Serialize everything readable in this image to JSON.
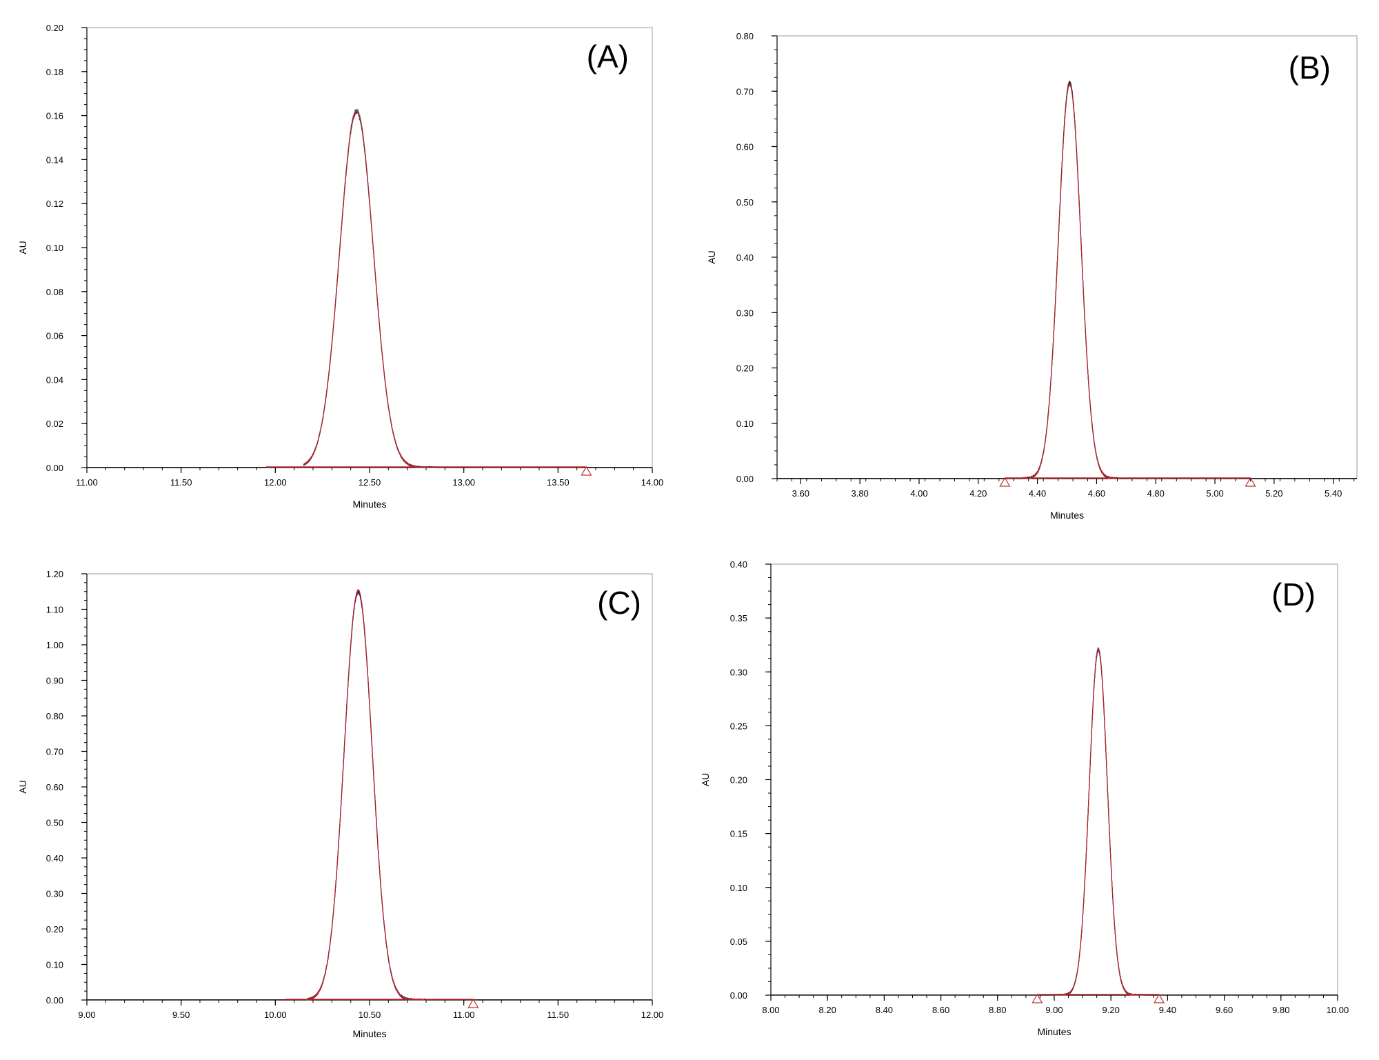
{
  "colors": {
    "axis": "#000000",
    "baseline": "#d02020",
    "marker": "#c03030",
    "traces": [
      "#d02020",
      "#1a1a1a",
      "#2a8a3a",
      "#3a6ad0",
      "#6a3aa0"
    ]
  },
  "chart_data": [
    {
      "type": "line",
      "panel_label": "(A)",
      "xlabel": "Minutes",
      "ylabel": "AU",
      "xlim": [
        11.0,
        14.0
      ],
      "ylim": [
        0.0,
        0.2
      ],
      "x_ticks": [
        "11.00",
        "11.50",
        "12.00",
        "12.50",
        "13.00",
        "13.50",
        "14.00"
      ],
      "y_ticks": [
        "0.00",
        "0.02",
        "0.04",
        "0.06",
        "0.08",
        "0.10",
        "0.12",
        "0.14",
        "0.16",
        "0.18",
        "0.20"
      ],
      "x_minor_step": 0.1,
      "y_minor_step": 0.005,
      "grid": false,
      "peak": {
        "center": 12.43,
        "height": 0.162,
        "sigma": 0.09
      },
      "signal_range": [
        12.15,
        12.85
      ],
      "baseline_range": [
        11.95,
        13.65
      ],
      "markers": [
        13.65
      ],
      "replicates": 5
    },
    {
      "type": "line",
      "panel_label": "(B)",
      "xlabel": "Minutes",
      "ylabel": "AU",
      "xlim": [
        3.52,
        5.48
      ],
      "ylim": [
        0.0,
        0.8
      ],
      "x_ticks": [
        "3.60",
        "3.80",
        "4.00",
        "4.20",
        "4.40",
        "4.60",
        "4.80",
        "5.00",
        "5.20",
        "5.40"
      ],
      "y_ticks": [
        "0.00",
        "0.10",
        "0.20",
        "0.30",
        "0.40",
        "0.50",
        "0.60",
        "0.70",
        "0.80"
      ],
      "x_minor_step": 0.05,
      "y_minor_step": 0.025,
      "grid": false,
      "peak": {
        "center": 4.51,
        "height": 0.715,
        "sigma": 0.038
      },
      "signal_range": [
        4.35,
        4.67
      ],
      "baseline_range": [
        4.29,
        5.12
      ],
      "markers": [
        4.29,
        5.12
      ],
      "replicates": 5
    },
    {
      "type": "line",
      "panel_label": "(C)",
      "xlabel": "Minutes",
      "ylabel": "AU",
      "xlim": [
        9.0,
        12.0
      ],
      "ylim": [
        0.0,
        1.2
      ],
      "x_ticks": [
        "9.00",
        "9.50",
        "10.00",
        "10.50",
        "11.00",
        "11.50",
        "12.00"
      ],
      "y_ticks": [
        "0.00",
        "0.10",
        "0.20",
        "0.30",
        "0.40",
        "0.50",
        "0.60",
        "0.70",
        "0.80",
        "0.90",
        "1.00",
        "1.10",
        "1.20"
      ],
      "x_minor_step": 0.1,
      "y_minor_step": 0.025,
      "grid": false,
      "peak": {
        "center": 10.44,
        "height": 1.15,
        "sigma": 0.075
      },
      "signal_range": [
        10.17,
        10.8
      ],
      "baseline_range": [
        10.05,
        11.05
      ],
      "markers": [
        11.05
      ],
      "replicates": 5
    },
    {
      "type": "line",
      "panel_label": "(D)",
      "xlabel": "Minutes",
      "ylabel": "AU",
      "xlim": [
        8.0,
        10.0
      ],
      "ylim": [
        0.0,
        0.4
      ],
      "x_ticks": [
        "8.00",
        "8.20",
        "8.40",
        "8.60",
        "8.80",
        "9.00",
        "9.20",
        "9.40",
        "9.60",
        "9.80",
        "10.00"
      ],
      "y_ticks": [
        "0.00",
        "0.05",
        "0.10",
        "0.15",
        "0.20",
        "0.25",
        "0.30",
        "0.35",
        "0.40"
      ],
      "x_minor_step": 0.05,
      "y_minor_step": 0.0125,
      "grid": false,
      "peak": {
        "center": 9.155,
        "height": 0.321,
        "sigma": 0.032
      },
      "signal_range": [
        9.0,
        9.32
      ],
      "baseline_range": [
        8.94,
        9.37
      ],
      "markers": [
        8.94,
        9.37
      ],
      "replicates": 5
    }
  ]
}
